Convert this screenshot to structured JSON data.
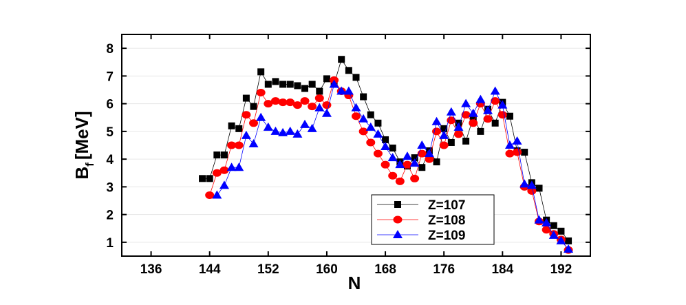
{
  "chart_data": {
    "type": "line",
    "x_label": "N",
    "y_label": [
      "B",
      "f",
      "[MeV]"
    ],
    "xlim": [
      132,
      196
    ],
    "xticks": [
      136,
      144,
      152,
      160,
      168,
      176,
      184,
      192
    ],
    "ylim": [
      0.5,
      8.5
    ],
    "yticks": [
      1,
      2,
      3,
      4,
      5,
      6,
      7,
      8
    ],
    "grid": true,
    "legend": "lower right",
    "series": [
      {
        "name": "Z=107",
        "color": "#000000",
        "marker": "square",
        "x": [
          143,
          144,
          145,
          146,
          147,
          148,
          149,
          150,
          151,
          152,
          153,
          154,
          155,
          156,
          157,
          158,
          159,
          160,
          161,
          162,
          163,
          164,
          165,
          166,
          167,
          168,
          169,
          170,
          171,
          172,
          173,
          174,
          175,
          176,
          177,
          178,
          179,
          180,
          181,
          182,
          183,
          184,
          185,
          186,
          187,
          188,
          189,
          190,
          191,
          192,
          193
        ],
        "values": [
          3.3,
          3.3,
          4.15,
          4.15,
          5.2,
          5.1,
          6.2,
          5.9,
          7.15,
          6.7,
          6.8,
          6.7,
          6.7,
          6.65,
          6.55,
          6.7,
          6.45,
          6.9,
          6.7,
          7.6,
          7.2,
          6.95,
          6.25,
          5.6,
          5.3,
          4.7,
          4.4,
          3.9,
          3.75,
          4.05,
          3.7,
          4.3,
          3.9,
          5.1,
          4.6,
          5.3,
          4.65,
          5.5,
          5.0,
          5.8,
          5.3,
          6.05,
          5.55,
          4.3,
          4.25,
          3.15,
          2.95,
          1.8,
          1.6,
          1.4,
          1.05
        ]
      },
      {
        "name": "Z=108",
        "color": "#ff0000",
        "marker": "circle",
        "x": [
          144,
          145,
          146,
          147,
          148,
          149,
          150,
          151,
          152,
          153,
          154,
          155,
          156,
          157,
          158,
          159,
          160,
          161,
          162,
          163,
          164,
          165,
          166,
          167,
          168,
          169,
          170,
          171,
          172,
          173,
          174,
          175,
          176,
          177,
          178,
          179,
          180,
          181,
          182,
          183,
          184,
          185,
          186,
          187,
          188,
          189,
          190,
          191,
          192,
          193
        ],
        "values": [
          2.7,
          3.5,
          3.6,
          4.5,
          4.5,
          5.6,
          5.3,
          6.4,
          6.0,
          6.1,
          6.05,
          6.05,
          5.95,
          6.1,
          5.9,
          6.2,
          5.95,
          6.85,
          6.45,
          6.3,
          5.55,
          5.0,
          4.6,
          4.2,
          3.8,
          3.4,
          3.2,
          3.8,
          3.3,
          4.2,
          4.0,
          5.0,
          4.5,
          5.4,
          4.9,
          5.6,
          5.3,
          6.0,
          5.45,
          6.1,
          5.6,
          4.2,
          4.25,
          3.0,
          2.85,
          1.75,
          1.45,
          1.3,
          1.1,
          0.72
        ]
      },
      {
        "name": "Z=109",
        "color": "#0000ff",
        "marker": "triangle",
        "x": [
          145,
          146,
          147,
          148,
          149,
          150,
          151,
          152,
          153,
          154,
          155,
          156,
          157,
          158,
          159,
          160,
          161,
          162,
          163,
          164,
          165,
          166,
          167,
          168,
          169,
          170,
          171,
          172,
          173,
          174,
          175,
          176,
          177,
          178,
          179,
          180,
          181,
          182,
          183,
          184,
          185,
          186,
          187,
          188,
          189,
          190,
          191,
          192,
          193
        ],
        "values": [
          2.7,
          3.05,
          3.7,
          3.7,
          4.85,
          4.55,
          5.5,
          5.15,
          5.0,
          4.95,
          5.0,
          4.9,
          5.25,
          5.1,
          5.85,
          5.65,
          6.7,
          6.45,
          6.45,
          5.85,
          5.45,
          5.15,
          4.9,
          4.45,
          4.05,
          3.8,
          4.1,
          3.85,
          4.5,
          4.2,
          5.35,
          4.85,
          5.7,
          5.15,
          6.0,
          5.65,
          6.15,
          5.75,
          6.45,
          5.95,
          4.5,
          4.65,
          3.1,
          3.05,
          1.8,
          1.7,
          1.25,
          1.05,
          0.75
        ]
      }
    ]
  }
}
